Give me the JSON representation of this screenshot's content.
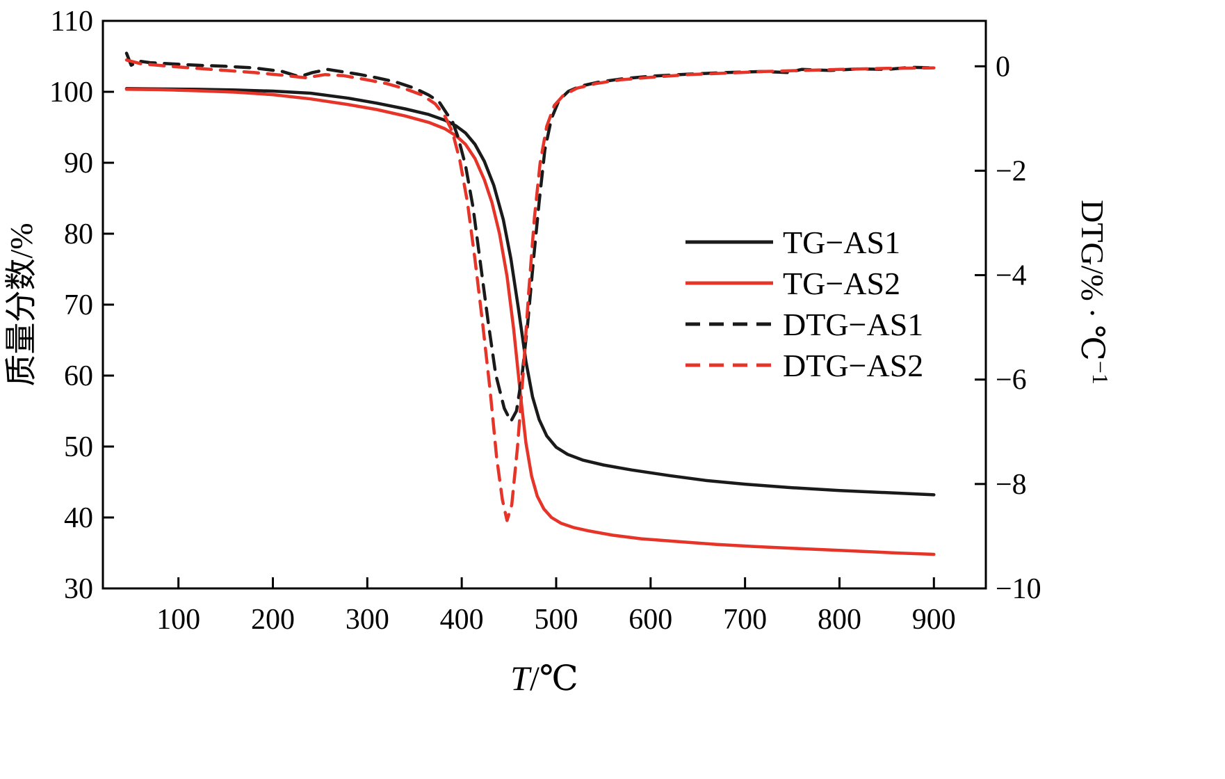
{
  "chart_data": {
    "type": "line",
    "title": "",
    "xlabel": "T/℃",
    "xlabel_parts": {
      "var": "T",
      "rest": "/℃"
    },
    "ylabel_left": "质量分数/%",
    "ylabel_right": "DTG/% ∙ ℃⁻¹",
    "ylabel_right_parts": {
      "main": "DTG/% ∙ ℃",
      "sup": "−1"
    },
    "xlim": [
      20,
      955
    ],
    "ylim_left": [
      30,
      110
    ],
    "ylim_right": [
      -10,
      0.87
    ],
    "x_ticks": [
      100,
      200,
      300,
      400,
      500,
      600,
      700,
      800,
      900
    ],
    "y_ticks_left": [
      30,
      40,
      50,
      60,
      70,
      80,
      90,
      100,
      110
    ],
    "y_ticks_right": [
      0,
      -2,
      -4,
      -6,
      -8,
      -10
    ],
    "grid": false,
    "colors": {
      "black": "#1a1a1a",
      "red": "#e63429",
      "frame": "#000000"
    },
    "legend": {
      "position": "middle-right",
      "entries": [
        {
          "label": "TG-AS1",
          "color": "#1a1a1a",
          "style": "solid"
        },
        {
          "label": "TG-AS2",
          "color": "#e63429",
          "style": "solid"
        },
        {
          "label": "DTG-AS1",
          "color": "#1a1a1a",
          "style": "dashed"
        },
        {
          "label": "DTG-AS2",
          "color": "#e63429",
          "style": "dashed"
        }
      ]
    },
    "series": [
      {
        "name": "TG-AS1",
        "axis": "left",
        "style": "solid",
        "color": "#1a1a1a",
        "points": [
          [
            45,
            100.45
          ],
          [
            80,
            100.4
          ],
          [
            120,
            100.35
          ],
          [
            160,
            100.25
          ],
          [
            200,
            100.1
          ],
          [
            240,
            99.8
          ],
          [
            280,
            99.1
          ],
          [
            310,
            98.4
          ],
          [
            340,
            97.6
          ],
          [
            365,
            96.8
          ],
          [
            382,
            96.0
          ],
          [
            394,
            95.2
          ],
          [
            404,
            94.2
          ],
          [
            414,
            92.6
          ],
          [
            424,
            90.2
          ],
          [
            434,
            86.8
          ],
          [
            444,
            82.0
          ],
          [
            452,
            76.5
          ],
          [
            460,
            69.5
          ],
          [
            468,
            62.0
          ],
          [
            475,
            57.0
          ],
          [
            482,
            53.8
          ],
          [
            490,
            51.5
          ],
          [
            500,
            49.9
          ],
          [
            512,
            48.9
          ],
          [
            528,
            48.1
          ],
          [
            550,
            47.4
          ],
          [
            580,
            46.7
          ],
          [
            620,
            45.9
          ],
          [
            660,
            45.2
          ],
          [
            700,
            44.7
          ],
          [
            750,
            44.2
          ],
          [
            800,
            43.8
          ],
          [
            850,
            43.5
          ],
          [
            900,
            43.2
          ]
        ]
      },
      {
        "name": "TG-AS2",
        "axis": "left",
        "style": "solid",
        "color": "#e63429",
        "points": [
          [
            45,
            100.35
          ],
          [
            80,
            100.3
          ],
          [
            120,
            100.15
          ],
          [
            160,
            99.95
          ],
          [
            200,
            99.6
          ],
          [
            240,
            99.0
          ],
          [
            280,
            98.2
          ],
          [
            310,
            97.5
          ],
          [
            340,
            96.6
          ],
          [
            365,
            95.7
          ],
          [
            382,
            94.8
          ],
          [
            394,
            93.8
          ],
          [
            404,
            92.6
          ],
          [
            414,
            90.6
          ],
          [
            424,
            87.6
          ],
          [
            432,
            84.4
          ],
          [
            440,
            80.0
          ],
          [
            448,
            74.0
          ],
          [
            455,
            66.5
          ],
          [
            462,
            57.5
          ],
          [
            468,
            50.5
          ],
          [
            474,
            45.8
          ],
          [
            480,
            43.0
          ],
          [
            487,
            41.2
          ],
          [
            495,
            40.0
          ],
          [
            505,
            39.2
          ],
          [
            518,
            38.6
          ],
          [
            535,
            38.1
          ],
          [
            560,
            37.5
          ],
          [
            590,
            37.0
          ],
          [
            630,
            36.6
          ],
          [
            670,
            36.2
          ],
          [
            710,
            35.9
          ],
          [
            760,
            35.6
          ],
          [
            810,
            35.3
          ],
          [
            860,
            35.0
          ],
          [
            900,
            34.8
          ]
        ]
      },
      {
        "name": "DTG-AS1",
        "axis": "right",
        "style": "dashed",
        "color": "#1a1a1a",
        "points": [
          [
            45,
            0.25
          ],
          [
            50,
            0.02
          ],
          [
            58,
            0.1
          ],
          [
            70,
            0.07
          ],
          [
            90,
            0.05
          ],
          [
            120,
            0.02
          ],
          [
            150,
            0.0
          ],
          [
            180,
            -0.03
          ],
          [
            210,
            -0.1
          ],
          [
            228,
            -0.2
          ],
          [
            242,
            -0.12
          ],
          [
            258,
            -0.06
          ],
          [
            272,
            -0.1
          ],
          [
            290,
            -0.15
          ],
          [
            310,
            -0.22
          ],
          [
            330,
            -0.3
          ],
          [
            350,
            -0.42
          ],
          [
            365,
            -0.55
          ],
          [
            376,
            -0.68
          ],
          [
            384,
            -0.9
          ],
          [
            390,
            -1.05
          ],
          [
            396,
            -1.35
          ],
          [
            404,
            -1.9
          ],
          [
            412,
            -2.7
          ],
          [
            420,
            -3.8
          ],
          [
            428,
            -4.9
          ],
          [
            436,
            -5.9
          ],
          [
            445,
            -6.55
          ],
          [
            452,
            -6.8
          ],
          [
            458,
            -6.6
          ],
          [
            464,
            -5.9
          ],
          [
            470,
            -4.9
          ],
          [
            476,
            -3.7
          ],
          [
            482,
            -2.6
          ],
          [
            488,
            -1.6
          ],
          [
            495,
            -1.0
          ],
          [
            503,
            -0.65
          ],
          [
            513,
            -0.48
          ],
          [
            526,
            -0.38
          ],
          [
            546,
            -0.3
          ],
          [
            570,
            -0.24
          ],
          [
            600,
            -0.19
          ],
          [
            640,
            -0.15
          ],
          [
            680,
            -0.12
          ],
          [
            720,
            -0.1
          ],
          [
            745,
            -0.12
          ],
          [
            760,
            -0.06
          ],
          [
            790,
            -0.08
          ],
          [
            820,
            -0.05
          ],
          [
            850,
            -0.06
          ],
          [
            875,
            -0.02
          ],
          [
            900,
            -0.03
          ]
        ]
      },
      {
        "name": "DTG-AS2",
        "axis": "right",
        "style": "dashed",
        "color": "#e63429",
        "points": [
          [
            45,
            0.12
          ],
          [
            60,
            0.05
          ],
          [
            90,
            0.0
          ],
          [
            120,
            -0.04
          ],
          [
            150,
            -0.08
          ],
          [
            180,
            -0.12
          ],
          [
            210,
            -0.17
          ],
          [
            235,
            -0.22
          ],
          [
            255,
            -0.16
          ],
          [
            275,
            -0.18
          ],
          [
            300,
            -0.26
          ],
          [
            320,
            -0.33
          ],
          [
            340,
            -0.43
          ],
          [
            358,
            -0.55
          ],
          [
            372,
            -0.72
          ],
          [
            382,
            -0.95
          ],
          [
            390,
            -1.25
          ],
          [
            398,
            -1.8
          ],
          [
            406,
            -2.6
          ],
          [
            414,
            -3.7
          ],
          [
            422,
            -4.9
          ],
          [
            430,
            -6.2
          ],
          [
            437,
            -7.5
          ],
          [
            443,
            -8.3
          ],
          [
            448,
            -8.7
          ],
          [
            453,
            -8.4
          ],
          [
            459,
            -7.3
          ],
          [
            465,
            -5.9
          ],
          [
            471,
            -4.3
          ],
          [
            477,
            -2.9
          ],
          [
            483,
            -1.85
          ],
          [
            490,
            -1.15
          ],
          [
            498,
            -0.75
          ],
          [
            508,
            -0.55
          ],
          [
            522,
            -0.42
          ],
          [
            542,
            -0.33
          ],
          [
            568,
            -0.26
          ],
          [
            600,
            -0.21
          ],
          [
            640,
            -0.16
          ],
          [
            680,
            -0.13
          ],
          [
            720,
            -0.1
          ],
          [
            760,
            -0.08
          ],
          [
            800,
            -0.06
          ],
          [
            850,
            -0.04
          ],
          [
            900,
            -0.03
          ]
        ]
      }
    ]
  }
}
